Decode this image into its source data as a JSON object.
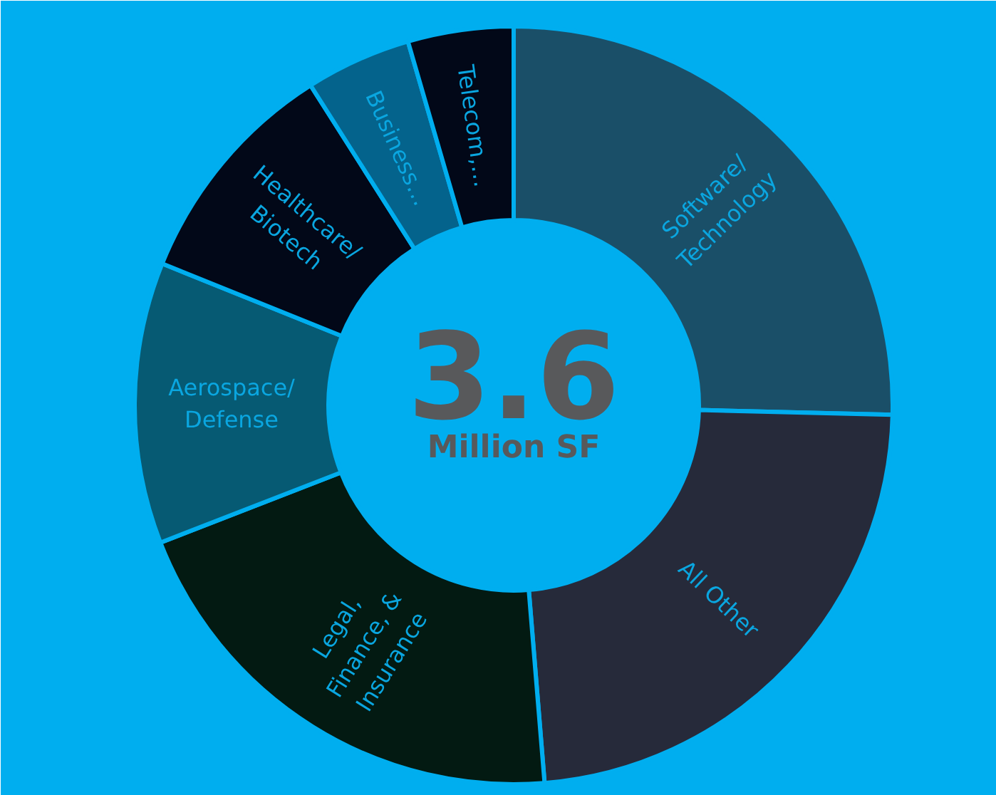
{
  "chart_data": {
    "type": "donut",
    "categories": [
      "Software/ Technology",
      "All Other",
      "Legal, Finance, & Insurance",
      "Aerospace/ Defense",
      "Healthcare/ Biotech",
      "Business…",
      "Telecom,…"
    ],
    "values": [
      25.4,
      23.3,
      20.4,
      12.0,
      9.9,
      4.5,
      4.5
    ],
    "colors": [
      "#1a4f68",
      "#262a3a",
      "#031a12",
      "#065a73",
      "#020818",
      "#04638c",
      "#020818"
    ],
    "annotations": [
      "3.6",
      "Million SF"
    ]
  }
}
